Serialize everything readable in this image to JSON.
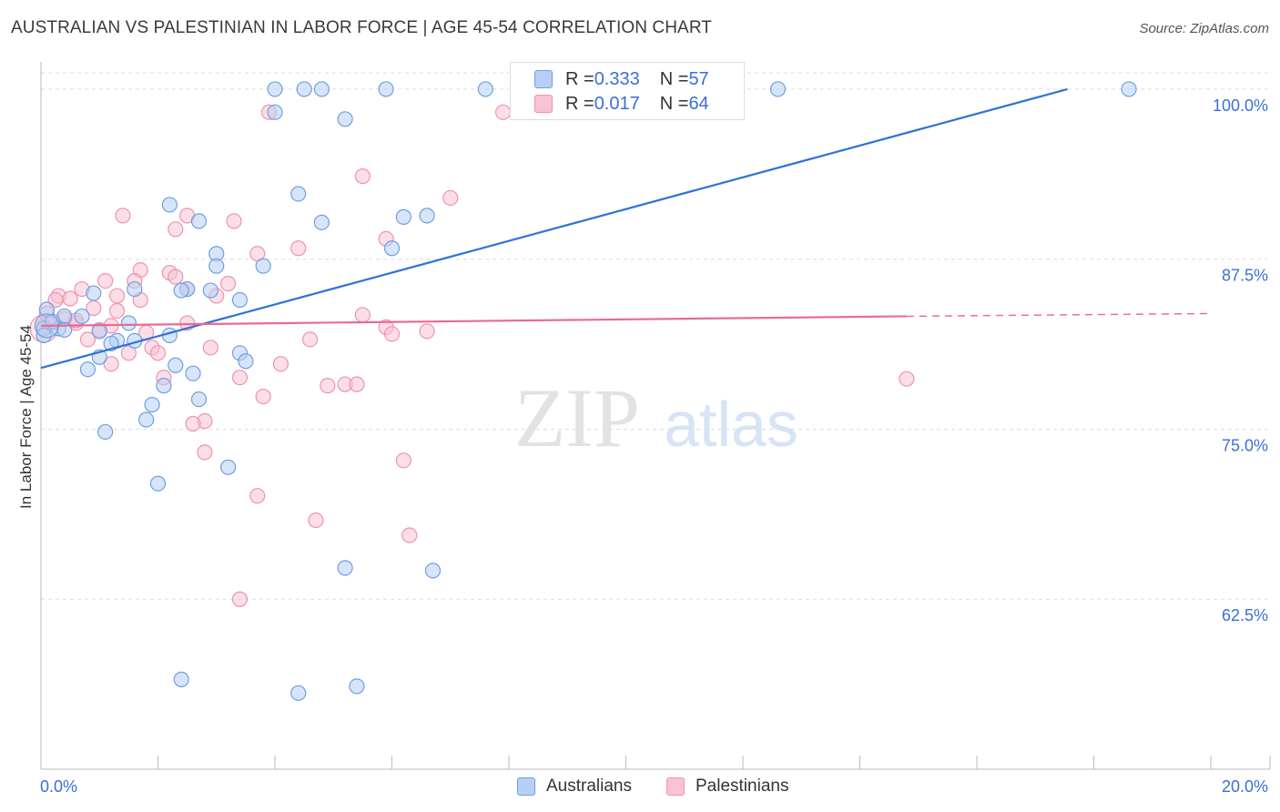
{
  "title": "AUSTRALIAN VS PALESTINIAN IN LABOR FORCE | AGE 45-54 CORRELATION CHART",
  "source": "Source: ZipAtlas.com",
  "watermark": {
    "zip": "ZIP",
    "atlas": "atlas"
  },
  "colors": {
    "blue_fill": "#b7cff4",
    "blue_stroke": "#6f9fe0",
    "blue_line": "#2f73d6",
    "pink_fill": "#f8c3d4",
    "pink_stroke": "#ee93b0",
    "pink_line": "#ea6a94",
    "axis_text": "#3a6fd8",
    "grid": "#dddddd"
  },
  "legend": {
    "rows": [
      {
        "r_label": "R = ",
        "r_value": "0.333",
        "n_label": "N = ",
        "n_value": "57"
      },
      {
        "r_label": "R = ",
        "r_value": "0.017",
        "n_label": "N = ",
        "n_value": "64"
      }
    ]
  },
  "bottom_legend": [
    "Australians",
    "Palestinians"
  ],
  "chart_data": {
    "type": "scatter",
    "title": "AUSTRALIAN VS PALESTINIAN IN LABOR FORCE | AGE 45-54 CORRELATION CHART",
    "xlabel": "",
    "ylabel": "In Labor Force | Age 45-54",
    "xlim": [
      0,
      20
    ],
    "ylim": [
      50,
      101.2
    ],
    "x_tick_labels": [
      "0.0%",
      "20.0%"
    ],
    "y_ticks": [
      62.5,
      75.0,
      87.5,
      100.0
    ],
    "y_tick_labels": [
      "62.5%",
      "75.0%",
      "87.5%",
      "100.0%"
    ],
    "grid": true,
    "series": [
      {
        "name": "Australians",
        "R": 0.333,
        "N": 57,
        "trend": {
          "x0": 0,
          "y0": 79.5,
          "x1": 17.55,
          "y1": 100.0,
          "style": "solid"
        },
        "points": [
          [
            4.0,
            100.0
          ],
          [
            4.5,
            100.0
          ],
          [
            4.8,
            100.0
          ],
          [
            5.9,
            100.0
          ],
          [
            7.6,
            100.0
          ],
          [
            12.6,
            100.0
          ],
          [
            18.6,
            100.0
          ],
          [
            4.0,
            98.3
          ],
          [
            5.2,
            97.8
          ],
          [
            4.4,
            92.3
          ],
          [
            6.2,
            90.6
          ],
          [
            6.6,
            90.7
          ],
          [
            2.2,
            91.5
          ],
          [
            2.7,
            90.3
          ],
          [
            4.8,
            90.2
          ],
          [
            6.0,
            88.3
          ],
          [
            3.0,
            87.9
          ],
          [
            3.8,
            87.0
          ],
          [
            3.0,
            87.0
          ],
          [
            1.6,
            85.3
          ],
          [
            2.5,
            85.3
          ],
          [
            2.4,
            85.2
          ],
          [
            2.9,
            85.2
          ],
          [
            0.9,
            85.0
          ],
          [
            3.4,
            84.5
          ],
          [
            0.1,
            83.8
          ],
          [
            0.4,
            83.3
          ],
          [
            0.7,
            83.3
          ],
          [
            1.5,
            82.8
          ],
          [
            0.3,
            82.4
          ],
          [
            0.4,
            82.3
          ],
          [
            2.2,
            81.9
          ],
          [
            1.3,
            81.5
          ],
          [
            1.6,
            81.5
          ],
          [
            1.2,
            81.3
          ],
          [
            3.4,
            80.6
          ],
          [
            1.0,
            80.3
          ],
          [
            3.5,
            80.0
          ],
          [
            0.8,
            79.4
          ],
          [
            2.3,
            79.7
          ],
          [
            2.6,
            79.1
          ],
          [
            2.1,
            78.2
          ],
          [
            2.7,
            77.2
          ],
          [
            1.9,
            76.8
          ],
          [
            1.8,
            75.7
          ],
          [
            1.1,
            74.8
          ],
          [
            3.2,
            72.2
          ],
          [
            2.0,
            71.0
          ],
          [
            5.2,
            64.8
          ],
          [
            6.7,
            64.6
          ],
          [
            2.4,
            56.6
          ],
          [
            4.4,
            55.6
          ],
          [
            5.4,
            56.1
          ],
          [
            0.05,
            82.4
          ],
          [
            0.05,
            81.9
          ],
          [
            0.2,
            82.9
          ],
          [
            1.0,
            82.2
          ]
        ]
      },
      {
        "name": "Palestinians",
        "R": 0.017,
        "N": 64,
        "trend": {
          "x0": 0,
          "y0": 82.6,
          "x1": 14.8,
          "y1": 83.3,
          "dash_to": {
            "x": 20.0,
            "y": 83.5
          },
          "style": "solid-then-dashed"
        },
        "points": [
          [
            3.9,
            98.3
          ],
          [
            7.9,
            98.3
          ],
          [
            5.5,
            93.6
          ],
          [
            7.0,
            92.0
          ],
          [
            1.4,
            90.7
          ],
          [
            2.5,
            90.7
          ],
          [
            3.3,
            90.3
          ],
          [
            2.3,
            89.7
          ],
          [
            5.9,
            89.0
          ],
          [
            4.4,
            88.3
          ],
          [
            3.7,
            87.9
          ],
          [
            1.7,
            86.7
          ],
          [
            2.2,
            86.5
          ],
          [
            2.3,
            86.2
          ],
          [
            1.1,
            85.9
          ],
          [
            1.6,
            85.9
          ],
          [
            3.2,
            85.7
          ],
          [
            0.7,
            85.3
          ],
          [
            2.5,
            85.3
          ],
          [
            0.3,
            84.8
          ],
          [
            0.5,
            84.6
          ],
          [
            1.3,
            84.8
          ],
          [
            3.0,
            84.8
          ],
          [
            1.7,
            84.5
          ],
          [
            0.25,
            84.5
          ],
          [
            0.9,
            83.9
          ],
          [
            1.3,
            83.7
          ],
          [
            0.1,
            83.5
          ],
          [
            5.5,
            83.4
          ],
          [
            0.6,
            82.8
          ],
          [
            5.9,
            82.5
          ],
          [
            1.0,
            82.3
          ],
          [
            6.6,
            82.2
          ],
          [
            1.8,
            82.1
          ],
          [
            6.0,
            82.0
          ],
          [
            4.6,
            81.6
          ],
          [
            0.8,
            81.6
          ],
          [
            1.9,
            81.0
          ],
          [
            2.9,
            81.0
          ],
          [
            2.0,
            80.6
          ],
          [
            1.5,
            80.6
          ],
          [
            4.1,
            79.8
          ],
          [
            1.2,
            79.8
          ],
          [
            2.1,
            78.8
          ],
          [
            3.4,
            78.8
          ],
          [
            5.2,
            78.3
          ],
          [
            5.4,
            78.3
          ],
          [
            4.9,
            78.2
          ],
          [
            14.8,
            78.7
          ],
          [
            3.8,
            77.4
          ],
          [
            2.8,
            75.6
          ],
          [
            2.6,
            75.4
          ],
          [
            2.8,
            73.3
          ],
          [
            6.2,
            72.7
          ],
          [
            3.7,
            70.1
          ],
          [
            4.7,
            68.3
          ],
          [
            6.3,
            67.2
          ],
          [
            3.4,
            62.5
          ],
          [
            0.05,
            82.6
          ],
          [
            0.15,
            82.9
          ],
          [
            0.4,
            83.1
          ],
          [
            0.6,
            83.0
          ],
          [
            1.2,
            82.6
          ],
          [
            2.5,
            82.8
          ]
        ]
      }
    ]
  }
}
